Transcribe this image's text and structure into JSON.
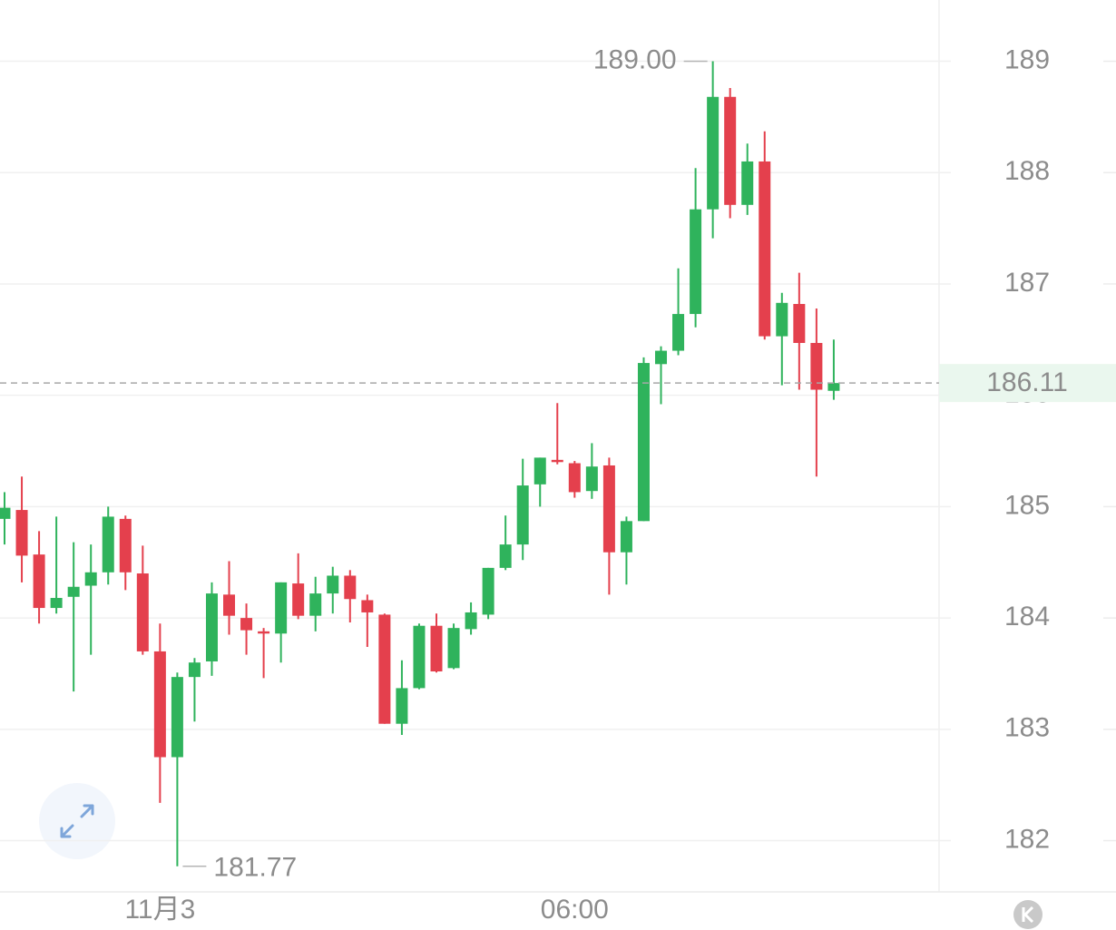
{
  "chart_data": {
    "type": "candlestick",
    "categories": [
      null,
      null,
      null,
      null,
      null,
      null,
      null,
      null,
      null,
      "11月3",
      null,
      null,
      null,
      null,
      null,
      null,
      null,
      null,
      null,
      null,
      null,
      null,
      null,
      null,
      null,
      null,
      null,
      null,
      null,
      null,
      null,
      null,
      null,
      "06:00",
      null,
      null,
      null,
      null,
      null,
      null,
      null,
      null,
      null,
      null,
      null,
      null,
      null,
      null,
      null
    ],
    "open": [
      184.89,
      184.97,
      184.57,
      184.09,
      184.19,
      184.29,
      184.41,
      184.89,
      184.4,
      183.7,
      182.75,
      183.47,
      183.61,
      184.21,
      184.0,
      183.88,
      183.86,
      184.31,
      184.02,
      184.22,
      184.38,
      184.16,
      184.03,
      183.05,
      183.37,
      183.93,
      183.55,
      183.9,
      184.03,
      184.45,
      184.66,
      185.2,
      185.42,
      185.39,
      185.14,
      185.37,
      184.59,
      184.87,
      186.28,
      186.4,
      186.73,
      187.67,
      188.68,
      187.71,
      188.1,
      186.53,
      186.82,
      186.47,
      186.04
    ],
    "high": [
      185.13,
      185.27,
      184.78,
      184.91,
      184.68,
      184.66,
      185.0,
      184.92,
      184.65,
      183.95,
      183.51,
      183.64,
      184.32,
      184.51,
      184.13,
      183.91,
      184.32,
      184.58,
      184.37,
      184.46,
      184.43,
      184.21,
      184.04,
      183.62,
      183.95,
      184.04,
      183.95,
      184.14,
      184.45,
      184.92,
      185.43,
      185.44,
      185.93,
      185.41,
      185.57,
      185.44,
      184.91,
      186.34,
      186.44,
      187.14,
      188.04,
      189.0,
      188.76,
      188.26,
      188.37,
      186.92,
      187.1,
      186.78,
      186.5
    ],
    "low": [
      184.66,
      184.32,
      183.95,
      184.04,
      183.34,
      183.67,
      184.3,
      184.25,
      183.67,
      182.34,
      181.77,
      183.07,
      183.48,
      183.85,
      183.67,
      183.46,
      183.6,
      183.99,
      183.88,
      184.04,
      183.96,
      183.74,
      183.05,
      182.95,
      183.36,
      183.51,
      183.54,
      183.85,
      183.99,
      184.43,
      184.52,
      185.0,
      185.38,
      185.08,
      185.07,
      184.21,
      184.3,
      184.87,
      185.92,
      186.36,
      186.61,
      187.41,
      187.59,
      187.62,
      186.5,
      186.09,
      186.05,
      185.27,
      185.96
    ],
    "close": [
      184.99,
      184.56,
      184.09,
      184.18,
      184.28,
      184.41,
      184.91,
      184.41,
      183.7,
      182.75,
      183.47,
      183.6,
      184.22,
      184.02,
      183.89,
      183.86,
      184.32,
      184.02,
      184.22,
      184.38,
      184.17,
      184.05,
      183.05,
      183.37,
      183.93,
      183.52,
      183.91,
      184.05,
      184.45,
      184.66,
      185.19,
      185.44,
      185.4,
      185.13,
      185.36,
      184.59,
      184.87,
      186.29,
      186.4,
      186.73,
      187.67,
      188.68,
      187.71,
      188.1,
      186.53,
      186.83,
      186.47,
      186.05,
      186.11
    ],
    "up_color": "#2fb35c",
    "down_color": "#e4404d",
    "ylim": [
      181.54,
      189.55
    ],
    "yticks": [
      182,
      183,
      184,
      185,
      186,
      187,
      188,
      189
    ],
    "grid": true,
    "max_label": {
      "value": 189,
      "label": "189.00"
    },
    "min_label": {
      "value": 181.77,
      "label": "181.77"
    },
    "last_price": 186.11
  }
}
